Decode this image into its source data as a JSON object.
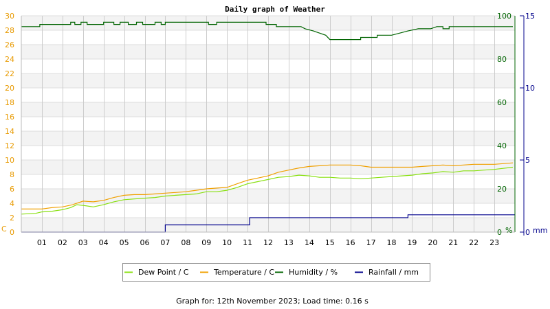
{
  "chart_data": {
    "type": "line",
    "title": "Daily graph of Weather",
    "x": {
      "ticks": [
        "01",
        "02",
        "03",
        "04",
        "05",
        "06",
        "07",
        "08",
        "09",
        "10",
        "11",
        "12",
        "13",
        "14",
        "15",
        "16",
        "17",
        "18",
        "19",
        "20",
        "21",
        "22",
        "23"
      ],
      "range": [
        0,
        24
      ]
    },
    "axes": {
      "left": {
        "unit": "C",
        "ticks": [
          "0",
          "2",
          "4",
          "6",
          "8",
          "10",
          "12",
          "14",
          "16",
          "18",
          "20",
          "22",
          "24",
          "26",
          "28",
          "30"
        ],
        "range": [
          0,
          30
        ],
        "color": "#e89a00"
      },
      "right1": {
        "unit": "%",
        "ticks": [
          "0",
          "20",
          "40",
          "60",
          "80",
          "100"
        ],
        "range": [
          0,
          100
        ],
        "color": "#006400"
      },
      "right2": {
        "unit": "mm",
        "ticks": [
          "0",
          "5",
          "10",
          "15"
        ],
        "range": [
          0,
          15
        ],
        "color": "#00008b"
      }
    },
    "grid": true,
    "legend_position": "bottom",
    "series": [
      {
        "name": "Dew Point / C",
        "axis": "left",
        "color": "#88e010",
        "points": [
          [
            0,
            2.5
          ],
          [
            0.7,
            2.6
          ],
          [
            1.0,
            2.8
          ],
          [
            1.5,
            2.9
          ],
          [
            2.0,
            3.1
          ],
          [
            2.4,
            3.4
          ],
          [
            2.7,
            3.8
          ],
          [
            3.0,
            3.7
          ],
          [
            3.5,
            3.5
          ],
          [
            4.0,
            3.8
          ],
          [
            4.5,
            4.2
          ],
          [
            5.0,
            4.5
          ],
          [
            5.5,
            4.6
          ],
          [
            6.0,
            4.7
          ],
          [
            6.5,
            4.8
          ],
          [
            7.0,
            5.0
          ],
          [
            7.5,
            5.1
          ],
          [
            8.0,
            5.2
          ],
          [
            8.5,
            5.3
          ],
          [
            9.0,
            5.6
          ],
          [
            9.5,
            5.6
          ],
          [
            10.0,
            5.8
          ],
          [
            10.5,
            6.2
          ],
          [
            11.0,
            6.7
          ],
          [
            11.5,
            7.0
          ],
          [
            12.0,
            7.3
          ],
          [
            12.5,
            7.6
          ],
          [
            13.0,
            7.7
          ],
          [
            13.5,
            7.9
          ],
          [
            14.0,
            7.8
          ],
          [
            14.5,
            7.6
          ],
          [
            15.0,
            7.6
          ],
          [
            15.5,
            7.5
          ],
          [
            16.0,
            7.5
          ],
          [
            16.5,
            7.4
          ],
          [
            17.0,
            7.5
          ],
          [
            17.5,
            7.6
          ],
          [
            18.0,
            7.7
          ],
          [
            18.5,
            7.8
          ],
          [
            19.0,
            7.9
          ],
          [
            19.5,
            8.1
          ],
          [
            20.0,
            8.2
          ],
          [
            20.5,
            8.4
          ],
          [
            21.0,
            8.3
          ],
          [
            21.5,
            8.5
          ],
          [
            22.0,
            8.5
          ],
          [
            22.5,
            8.6
          ],
          [
            23.0,
            8.7
          ],
          [
            23.9,
            9.0
          ]
        ]
      },
      {
        "name": "Temperature / C",
        "axis": "left",
        "color": "#f0a000",
        "points": [
          [
            0,
            3.2
          ],
          [
            1.0,
            3.2
          ],
          [
            1.5,
            3.4
          ],
          [
            2.0,
            3.5
          ],
          [
            2.5,
            3.8
          ],
          [
            3.0,
            4.3
          ],
          [
            3.5,
            4.2
          ],
          [
            4.0,
            4.4
          ],
          [
            4.5,
            4.8
          ],
          [
            5.0,
            5.1
          ],
          [
            5.5,
            5.2
          ],
          [
            6.0,
            5.2
          ],
          [
            6.5,
            5.3
          ],
          [
            7.0,
            5.4
          ],
          [
            7.5,
            5.5
          ],
          [
            8.0,
            5.6
          ],
          [
            8.5,
            5.8
          ],
          [
            9.0,
            6.0
          ],
          [
            9.5,
            6.1
          ],
          [
            10.0,
            6.2
          ],
          [
            10.5,
            6.7
          ],
          [
            11.0,
            7.2
          ],
          [
            11.5,
            7.5
          ],
          [
            12.0,
            7.8
          ],
          [
            12.5,
            8.3
          ],
          [
            13.0,
            8.6
          ],
          [
            13.5,
            8.9
          ],
          [
            14.0,
            9.1
          ],
          [
            14.5,
            9.2
          ],
          [
            15.0,
            9.3
          ],
          [
            15.5,
            9.3
          ],
          [
            16.0,
            9.3
          ],
          [
            16.5,
            9.2
          ],
          [
            17.0,
            9.0
          ],
          [
            17.5,
            9.0
          ],
          [
            18.0,
            9.0
          ],
          [
            18.5,
            9.0
          ],
          [
            19.0,
            9.0
          ],
          [
            19.5,
            9.1
          ],
          [
            20.0,
            9.2
          ],
          [
            20.5,
            9.3
          ],
          [
            21.0,
            9.2
          ],
          [
            21.5,
            9.3
          ],
          [
            22.0,
            9.4
          ],
          [
            22.5,
            9.4
          ],
          [
            23.0,
            9.4
          ],
          [
            23.9,
            9.6
          ]
        ]
      },
      {
        "name": "Humidity / %",
        "axis": "right1",
        "color": "#006400",
        "points": [
          [
            0,
            95
          ],
          [
            0.9,
            95
          ],
          [
            0.9,
            96
          ],
          [
            2.4,
            96
          ],
          [
            2.4,
            97
          ],
          [
            2.6,
            97
          ],
          [
            2.6,
            96
          ],
          [
            2.9,
            96
          ],
          [
            2.9,
            97
          ],
          [
            3.2,
            97
          ],
          [
            3.2,
            96
          ],
          [
            4.0,
            96
          ],
          [
            4.0,
            97
          ],
          [
            4.5,
            97
          ],
          [
            4.5,
            96
          ],
          [
            4.8,
            96
          ],
          [
            4.8,
            97
          ],
          [
            5.2,
            97
          ],
          [
            5.2,
            96
          ],
          [
            5.6,
            96
          ],
          [
            5.6,
            97
          ],
          [
            5.9,
            97
          ],
          [
            5.9,
            96
          ],
          [
            6.5,
            96
          ],
          [
            6.5,
            97
          ],
          [
            6.8,
            97
          ],
          [
            6.8,
            96
          ],
          [
            7.0,
            96
          ],
          [
            7.0,
            97
          ],
          [
            9.1,
            97
          ],
          [
            9.1,
            96
          ],
          [
            9.5,
            96
          ],
          [
            9.5,
            97
          ],
          [
            11.9,
            97
          ],
          [
            11.9,
            96
          ],
          [
            12.4,
            96
          ],
          [
            12.4,
            95
          ],
          [
            13.6,
            95
          ],
          [
            13.8,
            94
          ],
          [
            14.2,
            93
          ],
          [
            14.5,
            92
          ],
          [
            14.8,
            91
          ],
          [
            15.0,
            89
          ],
          [
            16.5,
            89
          ],
          [
            16.5,
            90
          ],
          [
            17.3,
            90
          ],
          [
            17.3,
            91
          ],
          [
            18.0,
            91
          ],
          [
            18.4,
            92
          ],
          [
            18.8,
            93
          ],
          [
            19.3,
            94
          ],
          [
            19.9,
            94
          ],
          [
            20.2,
            95
          ],
          [
            20.5,
            95
          ],
          [
            20.5,
            94
          ],
          [
            20.8,
            94
          ],
          [
            20.8,
            95
          ],
          [
            23.9,
            95
          ]
        ]
      },
      {
        "name": "Rainfall / mm",
        "axis": "right2",
        "color": "#00008b",
        "points": [
          [
            0,
            0
          ],
          [
            7.0,
            0
          ],
          [
            7.0,
            0.5
          ],
          [
            11.1,
            0.5
          ],
          [
            11.1,
            1.0
          ],
          [
            18.8,
            1.0
          ],
          [
            18.8,
            1.2
          ],
          [
            24.0,
            1.2
          ]
        ]
      }
    ]
  },
  "footer": {
    "label": "Graph for:",
    "date": "12th November 2023",
    "load_label": "Load time:",
    "load_time": "0.16 s"
  }
}
